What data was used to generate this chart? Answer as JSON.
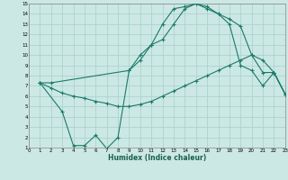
{
  "xlabel": "Humidex (Indice chaleur)",
  "bg_color": "#cce8e4",
  "grid_color": "#aad4cc",
  "line_color": "#1a7a6a",
  "xlim": [
    0,
    23
  ],
  "ylim": [
    1,
    15
  ],
  "xticks": [
    0,
    1,
    2,
    3,
    4,
    5,
    6,
    7,
    8,
    9,
    10,
    11,
    12,
    13,
    14,
    15,
    16,
    17,
    18,
    19,
    20,
    21,
    22,
    23
  ],
  "yticks": [
    1,
    2,
    3,
    4,
    5,
    6,
    7,
    8,
    9,
    10,
    11,
    12,
    13,
    14,
    15
  ],
  "line1_x": [
    1,
    2,
    9,
    10,
    11,
    12,
    13,
    14,
    15,
    16,
    17,
    18,
    19,
    20,
    21,
    22,
    23
  ],
  "line1_y": [
    7.3,
    7.3,
    8.5,
    9.5,
    11.0,
    11.5,
    13.0,
    14.5,
    15.0,
    14.7,
    14.0,
    13.5,
    12.8,
    10.0,
    8.3,
    8.3,
    6.2
  ],
  "line2_x": [
    1,
    2,
    3,
    4,
    5,
    6,
    7,
    8,
    9,
    10,
    11,
    12,
    13,
    14,
    15,
    16,
    17,
    18,
    19,
    20,
    21,
    22,
    23
  ],
  "line2_y": [
    7.3,
    6.8,
    6.3,
    6.0,
    5.8,
    5.5,
    5.3,
    5.0,
    5.0,
    5.2,
    5.5,
    6.0,
    6.5,
    7.0,
    7.5,
    8.0,
    8.5,
    9.0,
    9.5,
    10.0,
    9.5,
    8.3,
    6.2
  ],
  "line3_x": [
    1,
    3,
    4,
    5,
    6,
    7,
    8,
    9,
    10,
    11,
    12,
    13,
    14,
    15,
    16,
    17,
    18,
    19,
    20,
    21,
    22,
    23
  ],
  "line3_y": [
    7.3,
    4.5,
    1.2,
    1.2,
    2.2,
    0.9,
    2.0,
    8.5,
    10.0,
    11.0,
    13.0,
    14.5,
    14.7,
    15.0,
    14.5,
    14.0,
    13.0,
    9.0,
    8.5,
    7.0,
    8.3,
    6.2
  ]
}
